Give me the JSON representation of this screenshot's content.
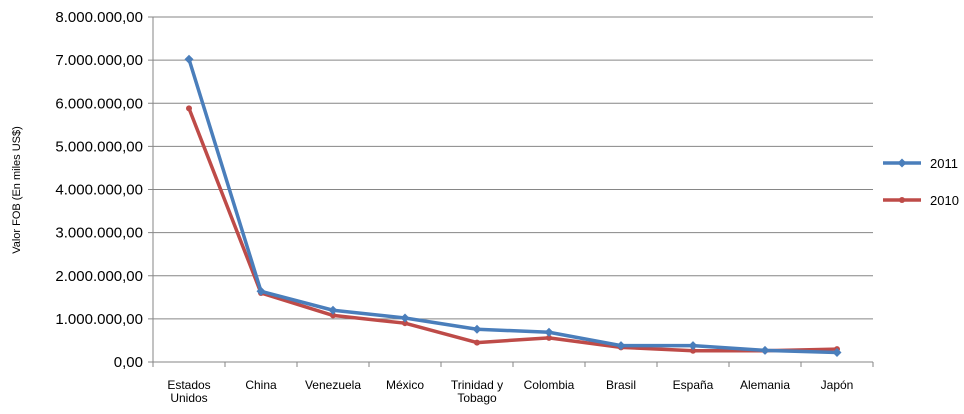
{
  "chart_data": {
    "type": "line",
    "title": "",
    "xlabel": "",
    "ylabel": "Valor FOB (En miles US$)",
    "ylim": [
      0,
      8000000
    ],
    "yticks": [
      {
        "value": 0,
        "label": "0,00"
      },
      {
        "value": 1000000,
        "label": "1.000.000,00"
      },
      {
        "value": 2000000,
        "label": "2.000.000,00"
      },
      {
        "value": 3000000,
        "label": "3.000.000,00"
      },
      {
        "value": 4000000,
        "label": "4.000.000,00"
      },
      {
        "value": 5000000,
        "label": "5.000.000,00"
      },
      {
        "value": 6000000,
        "label": "6.000.000,00"
      },
      {
        "value": 7000000,
        "label": "7.000.000,00"
      },
      {
        "value": 8000000,
        "label": "8.000.000,00"
      }
    ],
    "categories": [
      [
        "Estados",
        "Unidos"
      ],
      [
        "China"
      ],
      [
        "Venezuela"
      ],
      [
        "México"
      ],
      [
        "Trinidad y",
        "Tobago"
      ],
      [
        "Colombia"
      ],
      [
        "Brasil"
      ],
      [
        "España"
      ],
      [
        "Alemania"
      ],
      [
        "Japón"
      ]
    ],
    "grid": true,
    "legend_position": "right",
    "series": [
      {
        "name": "2011",
        "color": "#4a7ebb",
        "marker": "diamond",
        "values": [
          7020000,
          1640000,
          1200000,
          1020000,
          760000,
          690000,
          380000,
          380000,
          270000,
          220000
        ]
      },
      {
        "name": "2010",
        "color": "#be4b48",
        "marker": "circle",
        "values": [
          5880000,
          1600000,
          1080000,
          900000,
          450000,
          560000,
          340000,
          260000,
          260000,
          300000
        ]
      }
    ]
  }
}
